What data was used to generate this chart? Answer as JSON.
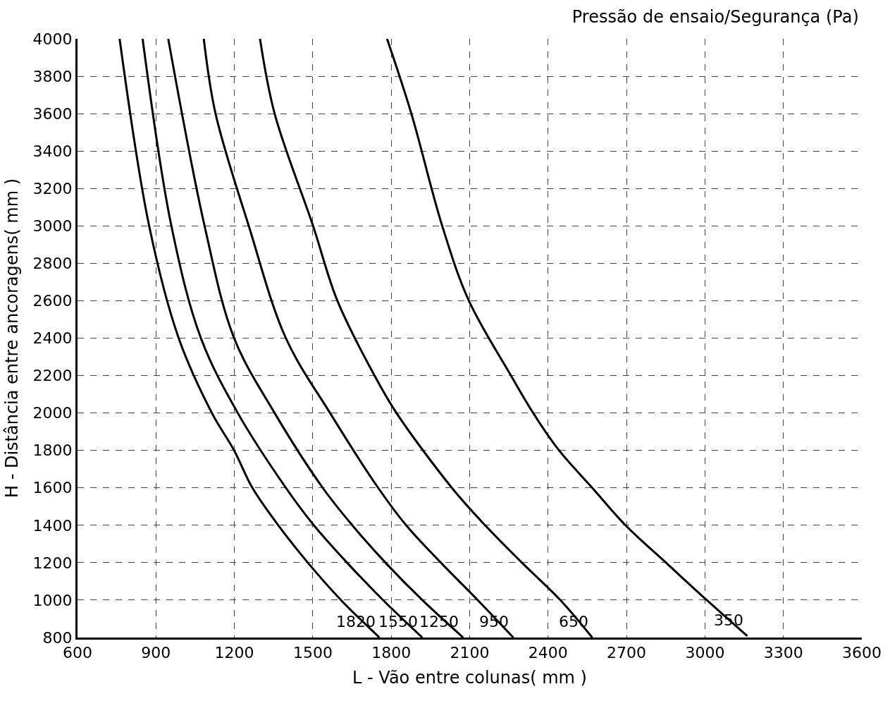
{
  "chart_data": {
    "type": "line",
    "title": "Pressão de ensaio/Segurança (Pa)",
    "xlabel": "L - Vão entre colunas( mm )",
    "ylabel": "H - Distância entre ancoragens( mm )",
    "xlim": [
      600,
      3600
    ],
    "xticks": [
      600,
      900,
      1200,
      1500,
      1800,
      2100,
      2400,
      2700,
      3000,
      3300,
      3600
    ],
    "ylim": [
      800,
      4000
    ],
    "yticks": [
      800,
      1000,
      1200,
      1400,
      1600,
      1800,
      2000,
      2200,
      2400,
      2600,
      2800,
      3000,
      3200,
      3400,
      3600,
      3800,
      4000
    ],
    "grid": true,
    "legend": false,
    "marker": "none",
    "line_style": "solid",
    "series": [
      {
        "name": "1820",
        "color": "#000000",
        "x": [
          761,
          874,
          987,
          1114,
          1199,
          1269,
          1368,
          1481,
          1608,
          1755
        ],
        "values": [
          4000,
          3000,
          2400,
          2000,
          1800,
          1600,
          1400,
          1200,
          1000,
          800
        ]
      },
      {
        "name": "1550",
        "color": "#000000",
        "x": [
          849,
          959,
          1072,
          1213,
          1397,
          1504,
          1631,
          1769,
          1919
        ],
        "values": [
          4000,
          3000,
          2400,
          2000,
          1600,
          1400,
          1200,
          1000,
          800
        ]
      },
      {
        "name": "1250",
        "color": "#000000",
        "x": [
          947,
          1086,
          1199,
          1354,
          1538,
          1651,
          1778,
          1919,
          2075
        ],
        "values": [
          4000,
          3000,
          2400,
          2000,
          1600,
          1400,
          1200,
          1000,
          800
        ]
      },
      {
        "name": "950",
        "color": "#000000",
        "x": [
          1083,
          1128,
          1255,
          1397,
          1566,
          1750,
          1857,
          1990,
          2131,
          2267
        ],
        "values": [
          4000,
          3600,
          3000,
          2400,
          2000,
          1600,
          1400,
          1200,
          1000,
          800
        ]
      },
      {
        "name": "650",
        "color": "#000000",
        "x": [
          1298,
          1354,
          1501,
          1594,
          1736,
          1820,
          2032,
          2159,
          2300,
          2447,
          2569
        ],
        "values": [
          4000,
          3600,
          3000,
          2600,
          2200,
          2000,
          1600,
          1400,
          1200,
          1000,
          800
        ]
      },
      {
        "name": "350",
        "color": "#000000",
        "x": [
          1784,
          1877,
          1995,
          2097,
          2258,
          2343,
          2442,
          2569,
          2696,
          2851,
          3007,
          3162
        ],
        "values": [
          4000,
          3600,
          3000,
          2600,
          2200,
          2000,
          1800,
          1600,
          1400,
          1200,
          1000,
          808
        ]
      }
    ]
  }
}
